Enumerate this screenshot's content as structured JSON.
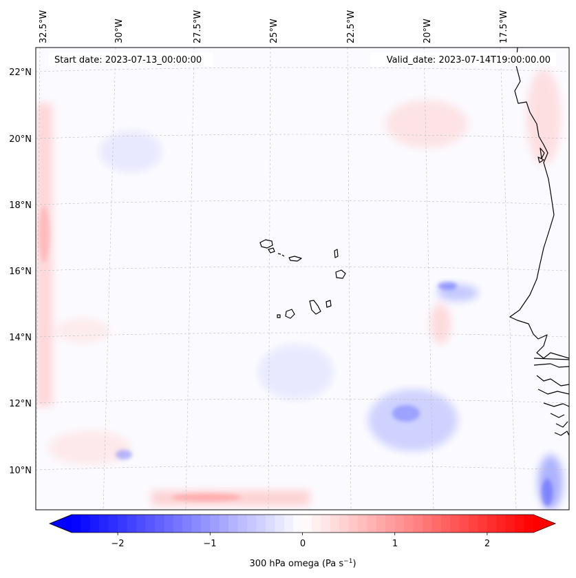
{
  "header": {
    "start_date": "Start date: 2023-07-13_00:00:00",
    "valid_date": "Valid_date: 2023-07-14T19:00:00.00"
  },
  "map": {
    "variable": "300 hPa omega",
    "lon_labels": [
      "32.5°W",
      "30°W",
      "27.5°W",
      "25°W",
      "22.5°W",
      "20°W",
      "17.5°W"
    ],
    "lat_labels": [
      "22°N",
      "20°N",
      "18°N",
      "16°N",
      "14°N",
      "12°N",
      "10°N"
    ],
    "colors": {
      "negative": "#0000ff",
      "zero": "#ffffff",
      "positive": "#ff0000",
      "coastline": "#000000",
      "gridline": "#bbbbbb"
    }
  },
  "colorbar": {
    "tick_labels": [
      "−2",
      "−1",
      "0",
      "1",
      "2"
    ],
    "tick_values": [
      -2,
      -1,
      0,
      1,
      2
    ],
    "range": [
      -2.5,
      2.5
    ],
    "label_main": "300 hPa omega (Pa s",
    "label_sup": "−1",
    "label_end": ")"
  }
}
